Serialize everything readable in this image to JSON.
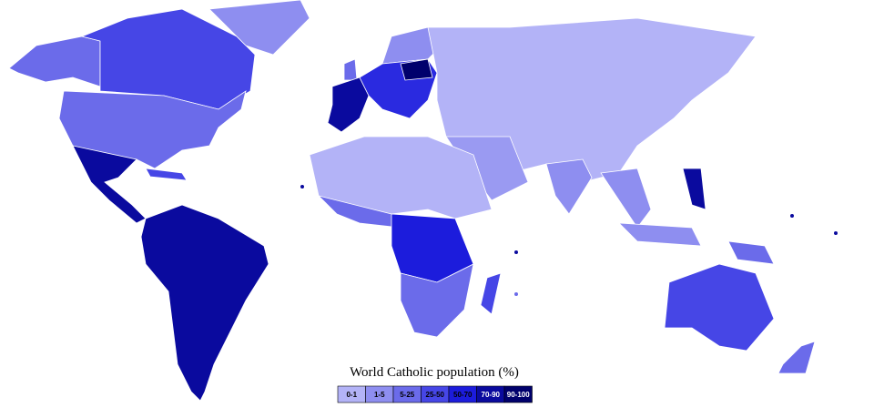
{
  "legend": {
    "title": "World Catholic population (%)",
    "items": [
      {
        "label": "0-1",
        "color": "#b3b3f7"
      },
      {
        "label": "1-5",
        "color": "#8e8ef0"
      },
      {
        "label": "5-25",
        "color": "#6b6bea"
      },
      {
        "label": "25-50",
        "color": "#4646e6"
      },
      {
        "label": "50-70",
        "color": "#1c1cdc"
      },
      {
        "label": "70-90",
        "color": "#0a0a9e"
      },
      {
        "label": "90-100",
        "color": "#00006c"
      }
    ]
  }
}
